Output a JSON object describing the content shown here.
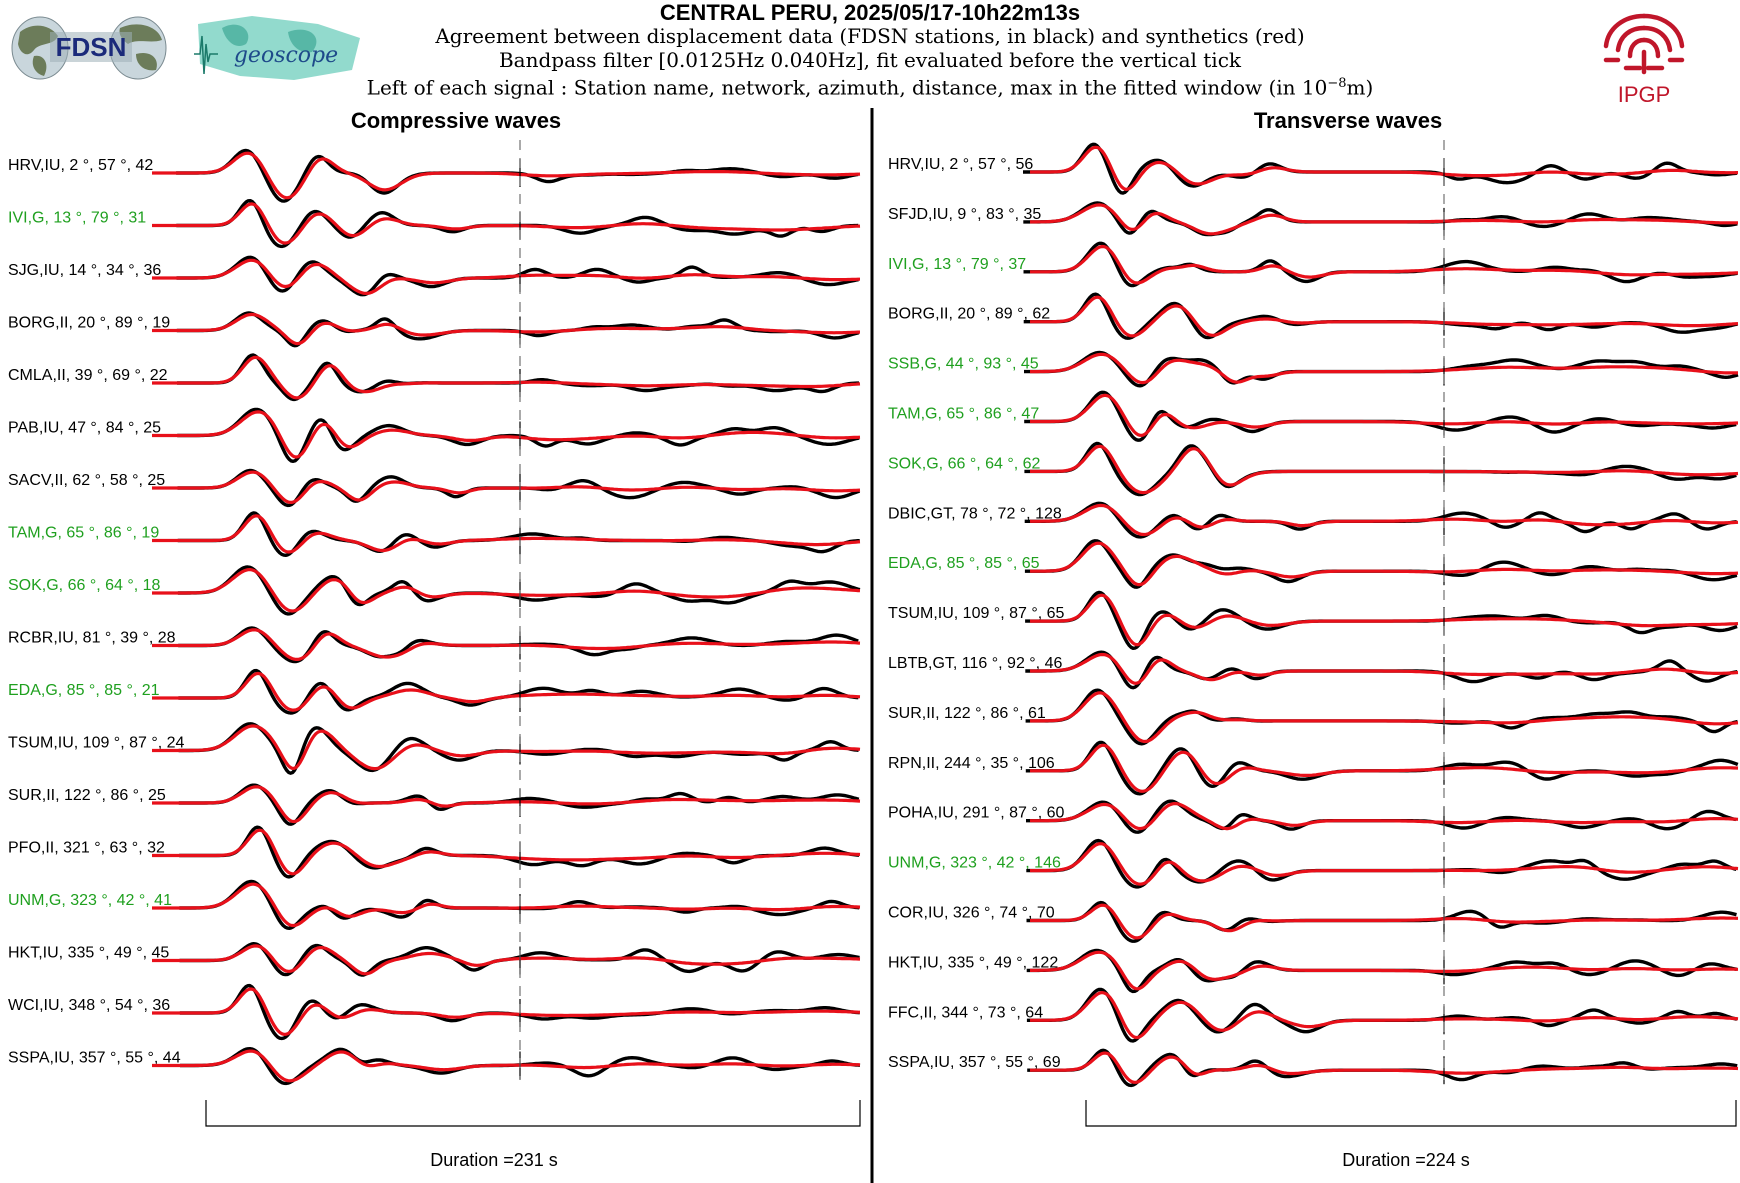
{
  "header": {
    "title": "CENTRAL PERU, 2025/05/17-10h22m13s",
    "line1": "Agreement between displacement data (FDSN stations, in black) and synthetics (red)",
    "line2": "Bandpass filter [0.0125Hz 0.040Hz], fit evaluated before the vertical tick",
    "line3_prefix": "Left of each signal : Station name, network, azimuth, distance, max in the fitted window (in 10",
    "line3_exp": "−8",
    "line3_suffix": "m)"
  },
  "logos": {
    "fdsn": "FDSN",
    "geoscope": "geoscope",
    "ipgp": "IPGP"
  },
  "colors": {
    "data": "#000000",
    "synthetic": "#e8101a",
    "fdsn_station": "#1fa01f",
    "other_station": "#000000"
  },
  "chart_data": [
    {
      "type": "line",
      "title": "Compressive waves",
      "duration_label": "Duration =231 s",
      "stations": [
        {
          "label": "HRV,IU, 2 °, 57 °, 42",
          "fdsn": false
        },
        {
          "label": "IVI,G, 13 °, 79 °, 31",
          "fdsn": true
        },
        {
          "label": "SJG,IU, 14 °, 34 °, 36",
          "fdsn": false
        },
        {
          "label": "BORG,II, 20 °, 89 °, 19",
          "fdsn": false
        },
        {
          "label": "CMLA,II, 39 °, 69 °, 22",
          "fdsn": false
        },
        {
          "label": "PAB,IU, 47 °, 84 °, 25",
          "fdsn": false
        },
        {
          "label": "SACV,II, 62 °, 58 °, 25",
          "fdsn": false
        },
        {
          "label": "TAM,G, 65 °, 86 °, 19",
          "fdsn": true
        },
        {
          "label": "SOK,G, 66 °, 64 °, 18",
          "fdsn": true
        },
        {
          "label": "RCBR,IU, 81 °, 39 °, 28",
          "fdsn": false
        },
        {
          "label": "EDA,G, 85 °, 85 °, 21",
          "fdsn": true
        },
        {
          "label": "TSUM,IU, 109 °, 87 °, 24",
          "fdsn": false
        },
        {
          "label": "SUR,II, 122 °, 86 °, 25",
          "fdsn": false
        },
        {
          "label": "PFO,II, 321 °, 63 °, 32",
          "fdsn": false
        },
        {
          "label": "UNM,G, 323 °, 42 °, 41",
          "fdsn": true
        },
        {
          "label": "HKT,IU, 335 °, 49 °, 45",
          "fdsn": false
        },
        {
          "label": "WCI,IU, 348 °, 54 °, 36",
          "fdsn": false
        },
        {
          "label": "SSPA,IU, 357 °, 55 °, 44",
          "fdsn": false
        }
      ]
    },
    {
      "type": "line",
      "title": "Transverse waves",
      "duration_label": "Duration =224 s",
      "stations": [
        {
          "label": "HRV,IU, 2 °, 57 °, 56",
          "fdsn": false
        },
        {
          "label": "SFJD,IU, 9 °, 83 °, 35",
          "fdsn": false
        },
        {
          "label": "IVI,G, 13 °, 79 °, 37",
          "fdsn": true
        },
        {
          "label": "BORG,II, 20 °, 89 °, 62",
          "fdsn": false
        },
        {
          "label": "SSB,G, 44 °, 93 °, 45",
          "fdsn": true
        },
        {
          "label": "TAM,G, 65 °, 86 °, 47",
          "fdsn": true
        },
        {
          "label": "SOK,G, 66 °, 64 °, 62",
          "fdsn": true
        },
        {
          "label": "DBIC,GT, 78 °, 72 °, 128",
          "fdsn": false
        },
        {
          "label": "EDA,G, 85 °, 85 °, 65",
          "fdsn": true
        },
        {
          "label": "TSUM,IU, 109 °, 87 °, 65",
          "fdsn": false
        },
        {
          "label": "LBTB,GT, 116 °, 92 °, 46",
          "fdsn": false
        },
        {
          "label": "SUR,II, 122 °, 86 °, 61",
          "fdsn": false
        },
        {
          "label": "RPN,II, 244 °, 35 °, 106",
          "fdsn": false
        },
        {
          "label": "POHA,IU, 291 °, 87 °, 60",
          "fdsn": false
        },
        {
          "label": "UNM,G, 323 °, 42 °, 146",
          "fdsn": true
        },
        {
          "label": "COR,IU, 326 °, 74 °, 70",
          "fdsn": false
        },
        {
          "label": "HKT,IU, 335 °, 49 °, 122",
          "fdsn": false
        },
        {
          "label": "FFC,II, 344 °, 73 °, 64",
          "fdsn": false
        },
        {
          "label": "SSPA,IU, 357 °, 55 °, 69",
          "fdsn": false
        }
      ]
    }
  ]
}
